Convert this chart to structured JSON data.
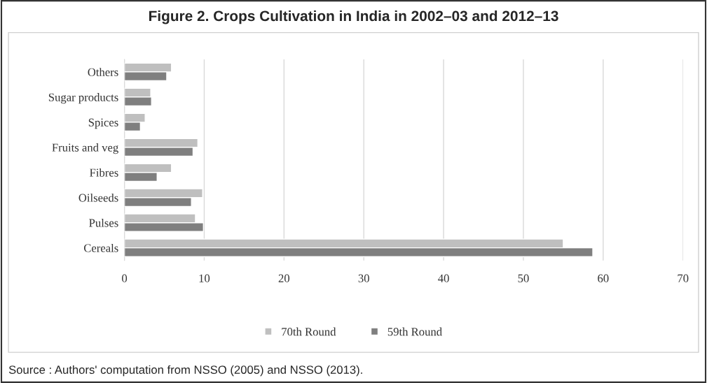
{
  "chart_data": {
    "type": "bar",
    "orientation": "horizontal",
    "title": "Figure 2. Crops Cultivation in India in 2002–03 and 2012–13",
    "categories": [
      "Others",
      "Sugar products",
      "Spices",
      "Fruits and veg",
      "Fibres",
      "Oilseeds",
      "Pulses",
      "Cereals"
    ],
    "series": [
      {
        "name": "70th Round",
        "color": "#bfbfbf",
        "values": [
          5.9,
          3.3,
          2.6,
          9.2,
          5.9,
          9.8,
          8.9,
          55.0
        ]
      },
      {
        "name": "59th Round",
        "color": "#7f7f7f",
        "values": [
          5.3,
          3.4,
          2.0,
          8.6,
          4.1,
          8.4,
          9.9,
          58.7
        ]
      }
    ],
    "xlim": [
      0,
      70
    ],
    "xticks": [
      0,
      10,
      20,
      30,
      40,
      50,
      60,
      70
    ],
    "grid": "x",
    "legend": "bottom",
    "annotations": [
      "Source : Authors' computation from NSSO (2005) and NSSO (2013)."
    ]
  }
}
